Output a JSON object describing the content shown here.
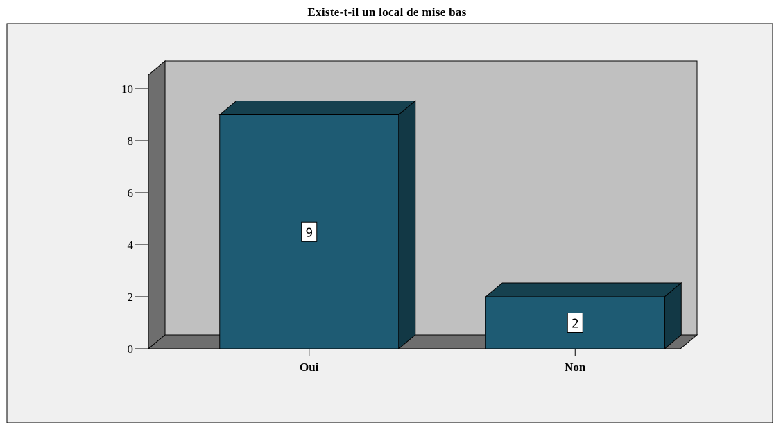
{
  "chart_data": {
    "type": "bar",
    "title": "Existe-t-il un local de mise bas",
    "categories": [
      "Oui",
      "Non"
    ],
    "values": [
      9,
      2
    ],
    "data_labels": [
      "9",
      "2"
    ],
    "ylim": [
      0,
      10
    ],
    "yticks": [
      0,
      2,
      4,
      6,
      8,
      10
    ],
    "xlabel": "",
    "ylabel": "",
    "grid": false,
    "legend": "none",
    "style": "3d",
    "colors": {
      "bar_front": "#1e5b73",
      "bar_top": "#16414f",
      "bar_side": "#123845",
      "plot_back_wall": "#c0c0c0",
      "plot_side_wall": "#6e6e6e",
      "plot_floor": "#6e6e6e",
      "outer_background": "#f0f0f0"
    }
  }
}
